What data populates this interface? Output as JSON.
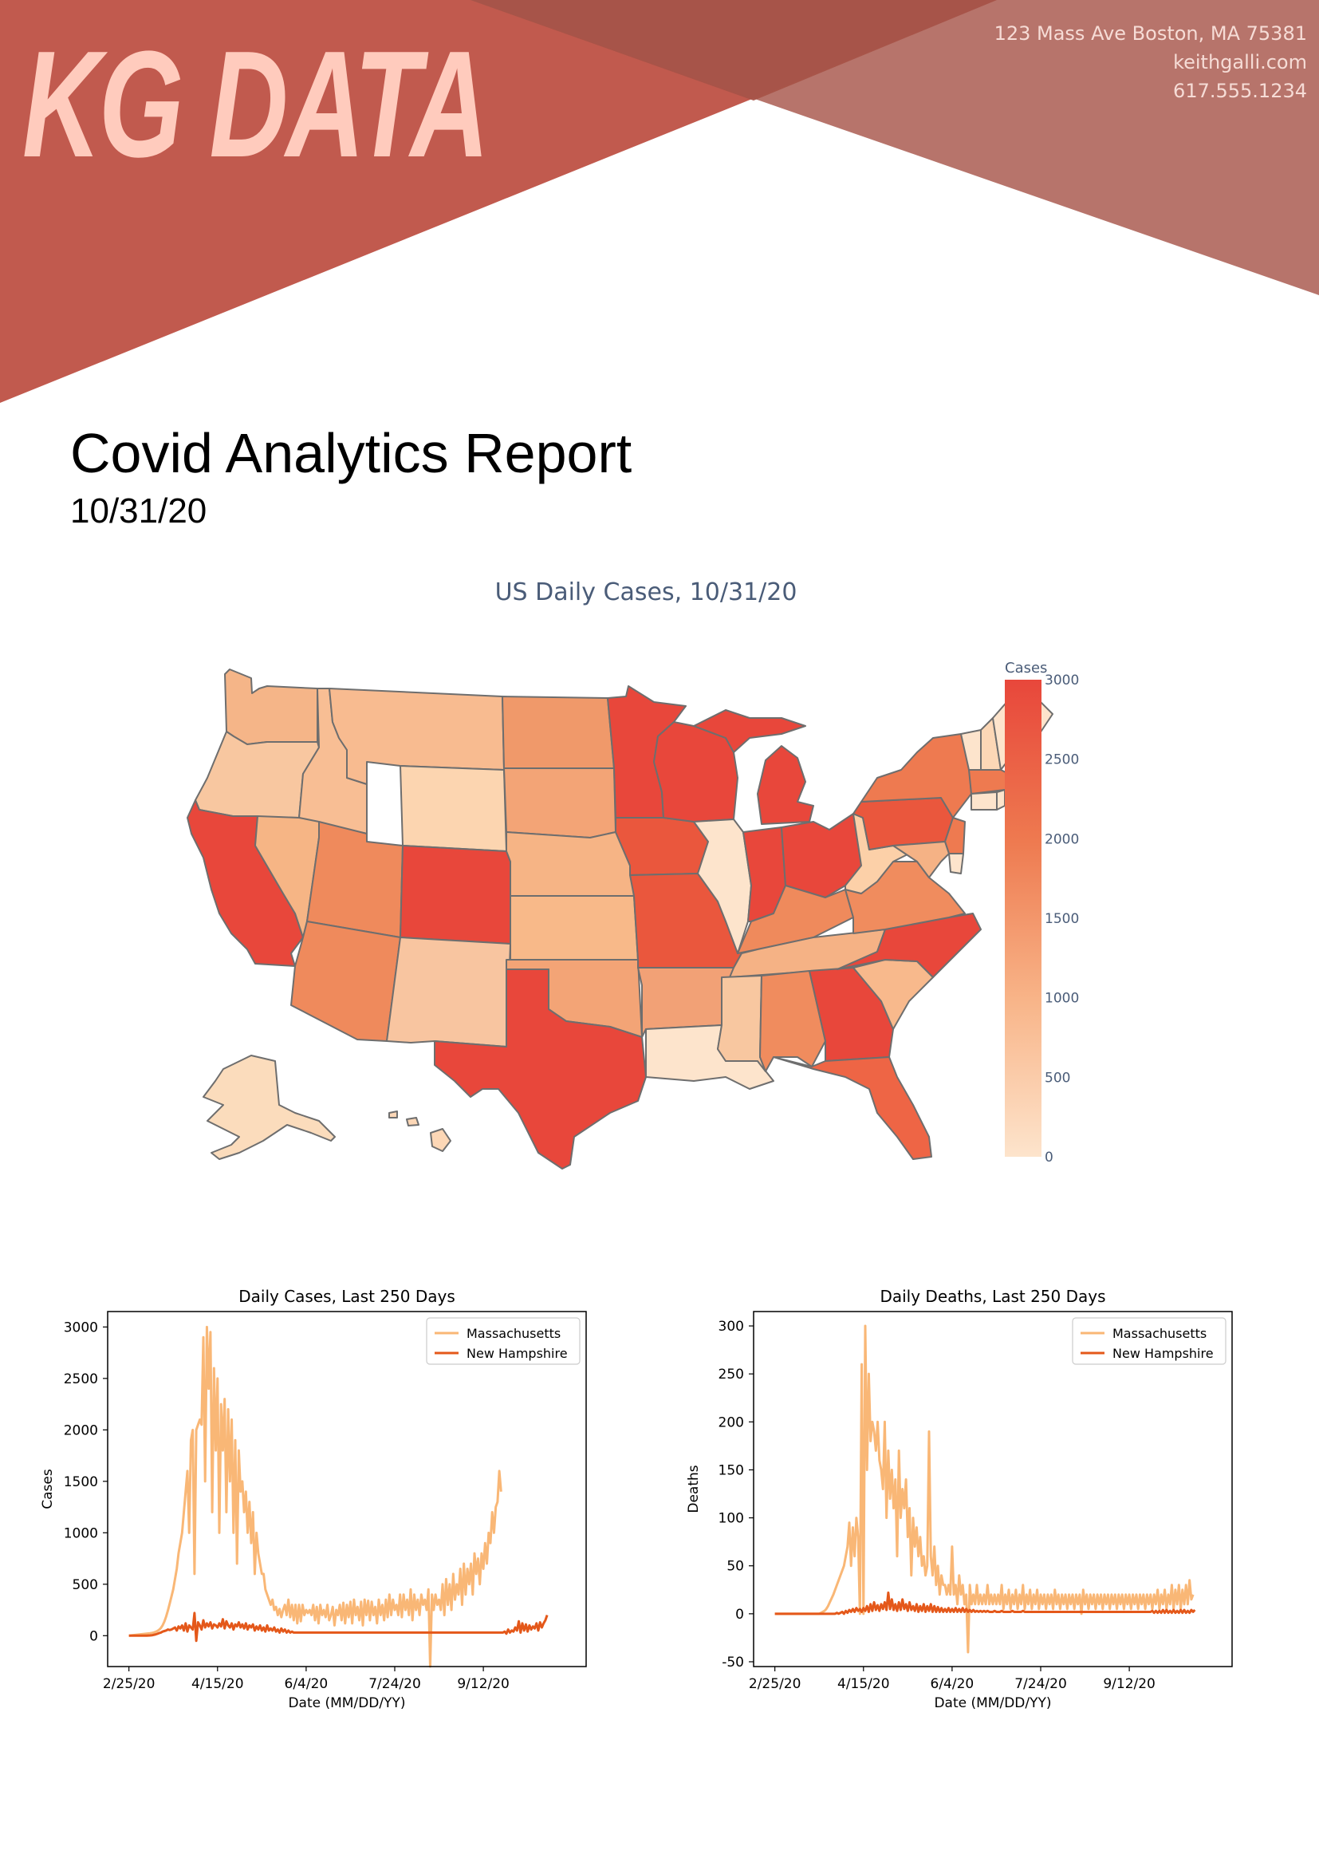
{
  "brand": {
    "logo_text": "KG DATA",
    "primary_color": "#c15a4e",
    "accent_color": "#ffcbbd"
  },
  "contact": {
    "address": "123 Mass Ave Boston, MA 75381",
    "website": "keithgalli.com",
    "phone": "617.555.1234"
  },
  "report": {
    "title": "Covid Analytics Report",
    "date": "10/31/20"
  },
  "map": {
    "title": "US Daily Cases, 10/31/20",
    "colorbar": {
      "title": "Cases",
      "ticks": [
        "3000",
        "2500",
        "2000",
        "1500",
        "1000",
        "500",
        "0"
      ],
      "min": 0,
      "max": 3000
    },
    "color_scale": [
      "#fde4cc",
      "#f8b488",
      "#ee7a50",
      "#e8473b"
    ]
  },
  "chart_data": [
    {
      "type": "line",
      "title": "Daily Cases, Last 250 Days",
      "xlabel": "Date (MM/DD/YY)",
      "ylabel": "Cases",
      "ylim": [
        -300,
        3150
      ],
      "yticks": [
        0,
        500,
        1000,
        1500,
        2000,
        2500,
        3000
      ],
      "xlim": [
        -12,
        258
      ],
      "xticks": [
        {
          "x": 0,
          "label": "2/25/20"
        },
        {
          "x": 50,
          "label": "4/15/20"
        },
        {
          "x": 100,
          "label": "6/4/20"
        },
        {
          "x": 150,
          "label": "7/24/20"
        },
        {
          "x": 200,
          "label": "9/12/20"
        }
      ],
      "series": [
        {
          "name": "Massachusetts",
          "color": "#f9b776",
          "values": [
            0,
            2,
            4,
            6,
            8,
            10,
            12,
            14,
            16,
            18,
            20,
            22,
            24,
            27,
            31,
            37,
            45,
            57,
            74,
            100,
            137,
            186,
            245,
            311,
            380,
            450,
            550,
            650,
            800,
            900,
            1000,
            1200,
            1400,
            1600,
            1000,
            1900,
            2000,
            600,
            2000,
            2050,
            2100,
            2050,
            2900,
            1500,
            3000,
            2400,
            2950,
            1200,
            2600,
            1800,
            2500,
            1000,
            2250,
            1800,
            2300,
            1200,
            2200,
            1500,
            2100,
            1000,
            1900,
            700,
            1800,
            1400,
            1500,
            1200,
            1400,
            1000,
            1300,
            900,
            1200,
            600,
            1000,
            800,
            700,
            600,
            600,
            450,
            400,
            350,
            300,
            350,
            250,
            280,
            200,
            260,
            180,
            250,
            300,
            200,
            350,
            180,
            300,
            150,
            300,
            120,
            300,
            140,
            300,
            200,
            250,
            220,
            250,
            200,
            300,
            150,
            280,
            120,
            300,
            200,
            250,
            180,
            300,
            150,
            200,
            280,
            100,
            250,
            200,
            300,
            150,
            320,
            120,
            300,
            180,
            330,
            120,
            350,
            200,
            280,
            150,
            330,
            100,
            350,
            200,
            340,
            150,
            330,
            200,
            280,
            120,
            350,
            200,
            300,
            150,
            350,
            180,
            400,
            200,
            350,
            250,
            300,
            200,
            400,
            180,
            400,
            250,
            350,
            200,
            450,
            150,
            400,
            250,
            350,
            200,
            400,
            300,
            350,
            250,
            450,
            -300,
            400,
            250,
            400,
            300,
            350,
            250,
            500,
            200,
            550,
            300,
            500,
            250,
            600,
            350,
            500,
            400,
            650,
            300,
            700,
            400,
            650,
            500,
            700,
            400,
            800,
            600,
            750,
            500,
            800,
            650,
            900,
            700,
            1000,
            900,
            1200,
            1000,
            1250,
            1300,
            1600,
            1400
          ]
        },
        {
          "name": "New Hampshire",
          "color": "#e4581a",
          "values": [
            0,
            0,
            0,
            0,
            0,
            0,
            0,
            0,
            0,
            0,
            0,
            1,
            2,
            4,
            8,
            12,
            18,
            25,
            30,
            40,
            45,
            50,
            60,
            55,
            60,
            70,
            80,
            50,
            90,
            70,
            100,
            50,
            120,
            40,
            100,
            80,
            60,
            220,
            -50,
            130,
            100,
            60,
            150,
            80,
            120,
            90,
            130,
            70,
            110,
            100,
            80,
            120,
            90,
            160,
            70,
            140,
            100,
            80,
            120,
            60,
            110,
            90,
            130,
            80,
            110,
            70,
            120,
            60,
            100,
            80,
            110,
            50,
            90,
            60,
            100,
            50,
            80,
            40,
            100,
            50,
            70,
            50,
            80,
            40,
            60,
            30,
            70,
            40,
            60,
            30,
            50,
            30,
            40,
            30,
            30,
            30,
            30,
            30,
            30,
            30,
            30,
            30,
            30,
            30,
            30,
            30,
            30,
            30,
            30,
            30,
            30,
            30,
            30,
            30,
            30,
            30,
            30,
            30,
            30,
            30,
            30,
            30,
            30,
            30,
            30,
            30,
            30,
            30,
            30,
            30,
            30,
            30,
            30,
            30,
            30,
            30,
            30,
            30,
            30,
            30,
            30,
            30,
            30,
            30,
            30,
            30,
            30,
            30,
            30,
            30,
            30,
            30,
            30,
            30,
            30,
            30,
            30,
            30,
            30,
            30,
            30,
            30,
            30,
            30,
            30,
            30,
            30,
            30,
            30,
            30,
            30,
            30,
            30,
            30,
            30,
            30,
            30,
            30,
            30,
            30,
            30,
            30,
            30,
            30,
            30,
            30,
            30,
            30,
            30,
            30,
            30,
            30,
            30,
            30,
            30,
            30,
            30,
            30,
            30,
            30,
            30,
            30,
            30,
            30,
            30,
            30,
            30,
            30,
            30,
            30,
            30,
            30,
            40,
            20,
            60,
            30,
            50,
            40,
            80,
            50,
            140,
            30,
            120,
            50,
            110,
            40,
            100,
            60,
            90,
            70,
            120,
            50,
            130,
            80,
            120,
            150,
            200
          ]
        }
      ]
    },
    {
      "type": "line",
      "title": "Daily Deaths, Last 250 Days",
      "xlabel": "Date (MM/DD/YY)",
      "ylabel": "Deaths",
      "ylim": [
        -55,
        315
      ],
      "yticks": [
        -50,
        0,
        50,
        100,
        150,
        200,
        250,
        300
      ],
      "xlim": [
        -12,
        258
      ],
      "xticks": [
        {
          "x": 0,
          "label": "2/25/20"
        },
        {
          "x": 50,
          "label": "4/15/20"
        },
        {
          "x": 100,
          "label": "6/4/20"
        },
        {
          "x": 150,
          "label": "7/24/20"
        },
        {
          "x": 200,
          "label": "9/12/20"
        }
      ],
      "series": [
        {
          "name": "Massachusetts",
          "color": "#f9b776",
          "values": [
            0,
            0,
            0,
            0,
            0,
            0,
            0,
            0,
            0,
            0,
            0,
            0,
            0,
            0,
            0,
            0,
            0,
            0,
            0,
            0,
            0,
            0,
            0,
            0,
            0,
            0,
            1,
            2,
            3,
            5,
            8,
            12,
            16,
            20,
            25,
            30,
            35,
            40,
            45,
            50,
            60,
            70,
            95,
            50,
            90,
            60,
            100,
            80,
            0,
            260,
            0,
            300,
            150,
            250,
            180,
            200,
            190,
            170,
            200,
            160,
            150,
            130,
            200,
            100,
            170,
            120,
            150,
            110,
            140,
            60,
            170,
            100,
            130,
            110,
            140,
            80,
            110,
            40,
            100,
            70,
            90,
            60,
            80,
            50,
            60,
            40,
            50,
            190,
            60,
            40,
            70,
            30,
            50,
            20,
            40,
            30,
            30,
            20,
            30,
            20,
            70,
            20,
            30,
            10,
            40,
            20,
            30,
            10,
            20,
            -40,
            30,
            10,
            20,
            10,
            30,
            10,
            20,
            10,
            20,
            10,
            30,
            10,
            20,
            10,
            20,
            10,
            20,
            10,
            30,
            5,
            20,
            10,
            25,
            5,
            20,
            10,
            25,
            5,
            20,
            10,
            30,
            5,
            20,
            10,
            25,
            5,
            20,
            10,
            25,
            5,
            20,
            10,
            20,
            5,
            20,
            10,
            20,
            5,
            25,
            10,
            20,
            5,
            20,
            10,
            20,
            5,
            20,
            10,
            20,
            5,
            20,
            10,
            20,
            0,
            25,
            10,
            20,
            5,
            20,
            10,
            20,
            5,
            20,
            10,
            20,
            5,
            20,
            10,
            20,
            5,
            20,
            10,
            20,
            5,
            20,
            10,
            20,
            5,
            20,
            10,
            20,
            5,
            20,
            10,
            20,
            5,
            20,
            10,
            20,
            5,
            20,
            10,
            20,
            5,
            20,
            10,
            25,
            5,
            20,
            10,
            25,
            5,
            20,
            10,
            30,
            5,
            25,
            10,
            30,
            5,
            25,
            10,
            30,
            10,
            35,
            15,
            20
          ]
        },
        {
          "name": "New Hampshire",
          "color": "#e4581a",
          "values": [
            0,
            0,
            0,
            0,
            0,
            0,
            0,
            0,
            0,
            0,
            0,
            0,
            0,
            0,
            0,
            0,
            0,
            0,
            0,
            0,
            0,
            0,
            0,
            0,
            0,
            0,
            0,
            0,
            0,
            0,
            0,
            0,
            0,
            0,
            0,
            1,
            0,
            1,
            2,
            0,
            3,
            1,
            4,
            2,
            5,
            2,
            6,
            3,
            5,
            2,
            6,
            3,
            8,
            2,
            10,
            3,
            12,
            4,
            9,
            3,
            10,
            5,
            12,
            4,
            22,
            5,
            15,
            4,
            10,
            3,
            12,
            4,
            15,
            5,
            10,
            3,
            12,
            4,
            8,
            3,
            10,
            2,
            8,
            3,
            10,
            2,
            8,
            3,
            10,
            2,
            8,
            2,
            7,
            2,
            6,
            2,
            5,
            2,
            6,
            2,
            5,
            2,
            6,
            2,
            5,
            2,
            6,
            2,
            5,
            2,
            4,
            2,
            4,
            2,
            3,
            2,
            3,
            2,
            3,
            2,
            3,
            2,
            2,
            2,
            3,
            2,
            2,
            2,
            3,
            2,
            2,
            2,
            2,
            2,
            3,
            2,
            2,
            2,
            2,
            2,
            3,
            2,
            2,
            2,
            2,
            2,
            2,
            2,
            2,
            2,
            2,
            2,
            2,
            2,
            2,
            2,
            2,
            2,
            2,
            2,
            2,
            2,
            2,
            2,
            2,
            2,
            2,
            2,
            2,
            2,
            2,
            2,
            2,
            2,
            2,
            2,
            2,
            2,
            2,
            2,
            2,
            2,
            2,
            2,
            2,
            2,
            2,
            2,
            2,
            2,
            2,
            2,
            2,
            2,
            2,
            2,
            2,
            2,
            2,
            2,
            2,
            2,
            2,
            2,
            2,
            2,
            2,
            2,
            2,
            2,
            2,
            2,
            2,
            3,
            1,
            3,
            1,
            3,
            1,
            4,
            1,
            4,
            1,
            3,
            1,
            4,
            1,
            3,
            1,
            4,
            1,
            4,
            1,
            3,
            1,
            4,
            2,
            4
          ]
        }
      ]
    }
  ]
}
